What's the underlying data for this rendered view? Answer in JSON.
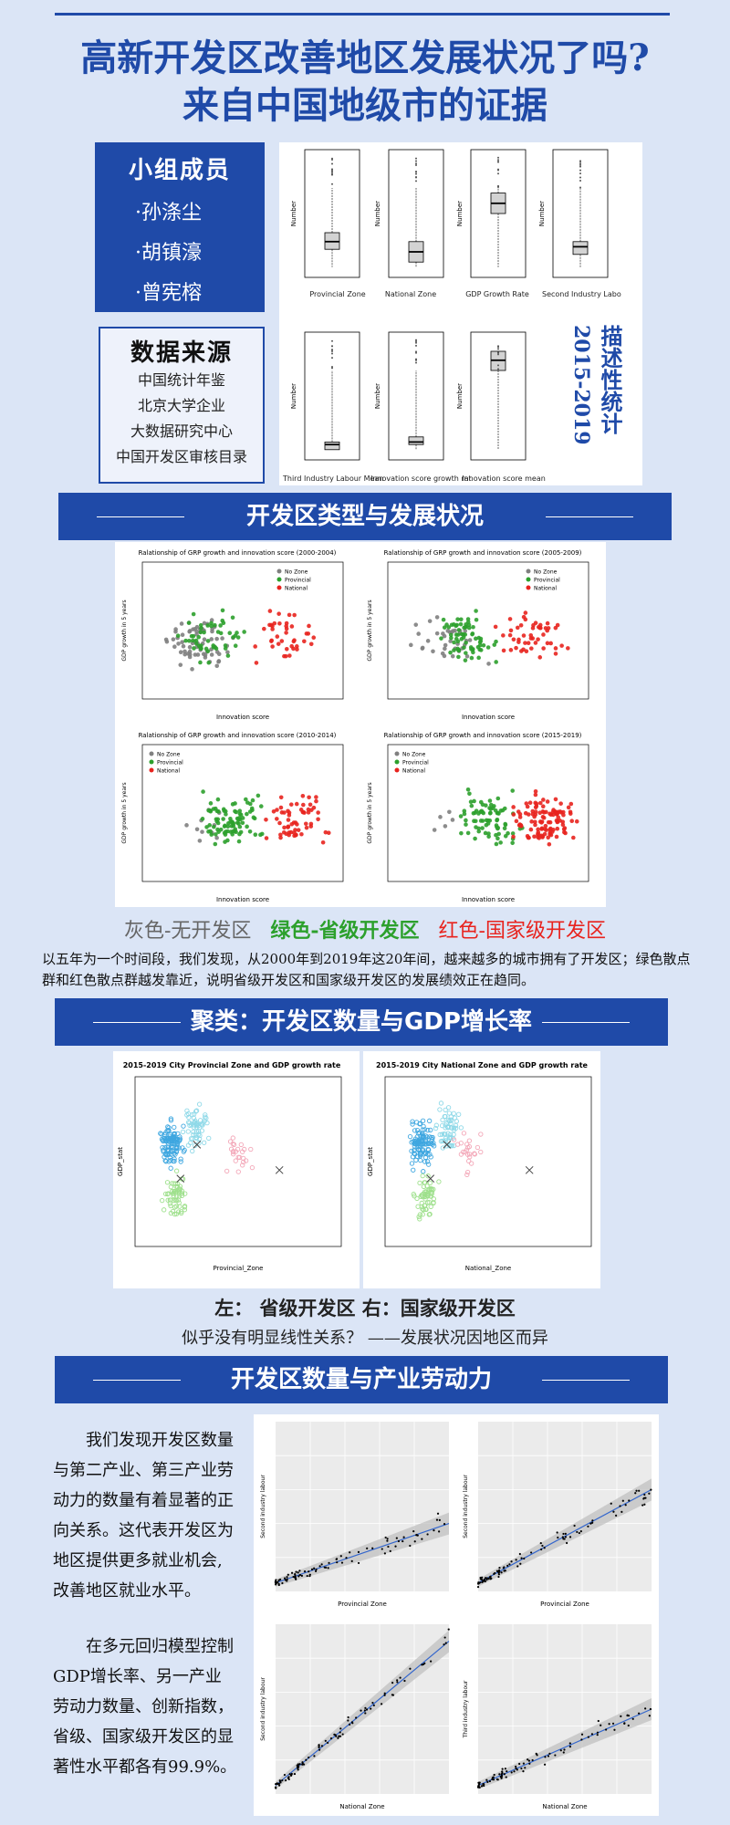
{
  "title": {
    "line1": "高新开发区改善地区发展状况了吗?",
    "line2": "来自中国地级市的证据"
  },
  "members": {
    "heading": "小组成员",
    "names": [
      "·孙涤尘",
      "·胡镇濠",
      "·曾宪榕"
    ]
  },
  "source": {
    "heading": "数据来源",
    "items": [
      "中国统计年鉴",
      "北京大学企业",
      "大数据研究中心",
      "中国开发区审核目录"
    ]
  },
  "descriptive": {
    "years": "2015-2019",
    "label": "描述性统计",
    "ylabel": "Number",
    "boxes": [
      "Provincial Zone",
      "National Zone",
      "GDP Growth Rate",
      "Second Industry Labo",
      "Third Industry Labour Mean",
      "Innovation score growth rat",
      "Innovation score mean"
    ]
  },
  "section1": {
    "title": "开发区类型与发展状况",
    "charts": [
      {
        "title": "Ralationship of GRP growth and innovation score (2000-2004)"
      },
      {
        "title": "Ralationship of GRP growth and innovation score (2005-2009)"
      },
      {
        "title": "Ralationship of GRP growth and innovation score (2010-2014)"
      },
      {
        "title": "Ralationship of GRP growth and innovation score (2015-2019)"
      }
    ],
    "xlabel": "Innovation score",
    "ylabel": "GDP growth in 5 years",
    "legend": [
      "No Zone",
      "Provincial",
      "National"
    ],
    "legend_text": {
      "gray": "灰色-无开发区",
      "green": "绿色-省级开发区",
      "red": "红色-国家级开发区"
    },
    "colors": {
      "gray": "#808080",
      "green": "#2ca02c",
      "red": "#e8231e"
    },
    "text": "以五年为一个时间段，我们发现，从2000年到2019年这20年间，越来越多的城市拥有了开发区；绿色散点群和红色散点群越发靠近，说明省级开发区和国家级开发区的发展绩效正在趋同。"
  },
  "section2": {
    "title": "聚类：开发区数量与GDP增长率",
    "left_title": "2015-2019 City Provincial Zone and GDP growth rate",
    "left_xlabel": "Provincial_Zone",
    "right_title": "2015-2019 City National Zone and GDP growth rate",
    "right_xlabel": "National_Zone",
    "ylabel": "GDP_stat",
    "caption1": "左：  省级开发区  右：国家级开发区",
    "caption2": "似乎没有明显线性关系？ ——发展状况因地区而异"
  },
  "section3": {
    "title": "开发区数量与产业劳动力",
    "para1": "我们发现开发区数量与第二产业、第三产业劳动力的数量有着显著的正向关系。这代表开发区为地区提供更多就业机会,改善地区就业水平。",
    "para2": "在多元回归模型控制GDP增长率、另一产业劳动力数量、创新指数，省级、国家级开发区的显著性水平都各有99.9%。",
    "plots": [
      {
        "xlabel": "Provincial Zone",
        "ylabel": "Second industry labour"
      },
      {
        "xlabel": "Provincial Zone",
        "ylabel": "Second industry labour"
      },
      {
        "xlabel": "National Zone",
        "ylabel": "Second industry labour"
      },
      {
        "xlabel": "National Zone",
        "ylabel": "Third industry labour"
      }
    ]
  }
}
